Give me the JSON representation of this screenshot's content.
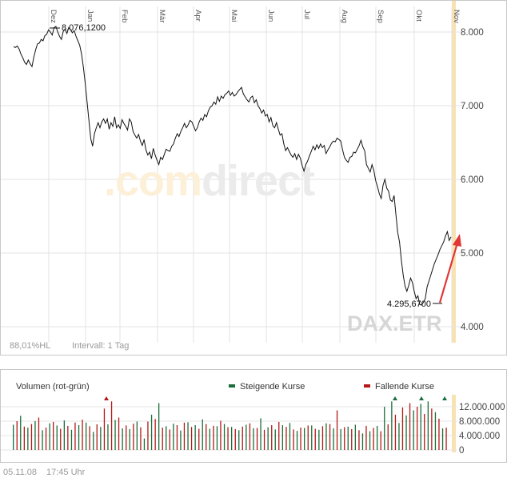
{
  "watermark": {
    "part1": ".com",
    "part2": "direct"
  },
  "instrument": "DAX.ETR",
  "main_footer": {
    "range_info": "88,01%HL",
    "interval": "Intervall: 1 Tag"
  },
  "volume_panel": {
    "title": "Volumen (rot-grün)",
    "legend_rising": "Steigende Kurse",
    "legend_falling": "Fallende Kurse",
    "rising_color": "#1a6e3a",
    "falling_color": "#b51818"
  },
  "timestamp": {
    "date": "05.11.08",
    "time": "17:45 Uhr"
  },
  "chart_data": [
    {
      "type": "line",
      "x_axis_labels": [
        "Dez",
        "Jan",
        "Feb",
        "Mär",
        "Apr",
        "Mai",
        "Jun",
        "Jul",
        "Aug",
        "Sep",
        "Okt",
        "Nov"
      ],
      "y_tick_labels": [
        "4.000",
        "5.000",
        "6.000",
        "7.000",
        "8.000"
      ],
      "ylim": [
        3800,
        8400
      ],
      "grid": true,
      "high_label": "8.076,1200",
      "low_label": "4.295,6700",
      "series": [
        {
          "values": [
            7800,
            7790,
            7810,
            7770,
            7700,
            7650,
            7590,
            7560,
            7620,
            7570,
            7530,
            7660,
            7760,
            7840,
            7850,
            7900,
            7880,
            7950,
            7970,
            8030,
            8000,
            7960,
            8060,
            8076,
            8000,
            7940,
            7900,
            8010,
            8040,
            7980,
            8060,
            8030,
            7990,
            8020,
            7940,
            7880,
            7820,
            7700,
            7520,
            7300,
            7050,
            6800,
            6550,
            6450,
            6620,
            6700,
            6770,
            6700,
            6780,
            6820,
            6760,
            6820,
            6680,
            6770,
            6720,
            6850,
            6700,
            6740,
            6690,
            6810,
            6760,
            6720,
            6670,
            6820,
            6780,
            6650,
            6600,
            6560,
            6610,
            6520,
            6460,
            6540,
            6400,
            6330,
            6370,
            6280,
            6420,
            6330,
            6260,
            6200,
            6300,
            6270,
            6340,
            6410,
            6390,
            6380,
            6450,
            6480,
            6560,
            6620,
            6580,
            6650,
            6700,
            6760,
            6700,
            6740,
            6800,
            6780,
            6720,
            6660,
            6700,
            6780,
            6830,
            6800,
            6880,
            6850,
            6930,
            6980,
            7000,
            7050,
            7020,
            7120,
            7060,
            7130,
            7100,
            7150,
            7170,
            7200,
            7140,
            7180,
            7130,
            7150,
            7190,
            7220,
            7250,
            7160,
            7120,
            7080,
            7050,
            7110,
            7130,
            7040,
            7080,
            7000,
            6960,
            6900,
            6940,
            6860,
            6880,
            6780,
            6840,
            6730,
            6700,
            6770,
            6680,
            6600,
            6620,
            6480,
            6390,
            6430,
            6380,
            6330,
            6300,
            6350,
            6270,
            6340,
            6290,
            6190,
            6110,
            6200,
            6250,
            6320,
            6380,
            6450,
            6400,
            6470,
            6420,
            6480,
            6430,
            6460,
            6350,
            6400,
            6440,
            6490,
            6520,
            6510,
            6560,
            6540,
            6520,
            6400,
            6300,
            6260,
            6230,
            6300,
            6310,
            6370,
            6360,
            6410,
            6460,
            6530,
            6440,
            6390,
            6200,
            6150,
            6100,
            6200,
            6120,
            5980,
            5900,
            5800,
            5740,
            5920,
            6000,
            5880,
            5840,
            5720,
            5700,
            5780,
            5520,
            5280,
            5150,
            4900,
            4700,
            4550,
            4480,
            4560,
            4660,
            4600,
            4480,
            4380,
            4420,
            4300,
            4295,
            4330,
            4380,
            4540,
            4620,
            4700,
            4780,
            4860,
            4920,
            4980,
            5050,
            5100,
            5150,
            5230,
            5290,
            5170,
            5220
          ]
        }
      ],
      "trend_arrow_color": "#e23535"
    },
    {
      "type": "bar",
      "title": "Volumen (rot-grün)",
      "y_tick_labels": [
        "0",
        "4.000.000",
        "8.000.000",
        "12.000.000"
      ],
      "ylim": [
        0,
        15000000
      ],
      "series": [
        {
          "name": "Steigende Kurse",
          "values": [
            7000000,
            9500000,
            6200000,
            8000000,
            5500000,
            7400000,
            6800000,
            8200000,
            5600000,
            6900000,
            7600000,
            5000000,
            6400000,
            7100000,
            8300000,
            6000000,
            5800000,
            7900000,
            3200000,
            9800000,
            13000000,
            6600000,
            7300000,
            5400000,
            7700000,
            6900000,
            8500000,
            5900000,
            6600000,
            7200000,
            6400000,
            5500000,
            7000000,
            6000000,
            8800000,
            6300000,
            5700000,
            6900000,
            7500000,
            5300000,
            6100000,
            6800000,
            5600000,
            7400000,
            6000000,
            5800000,
            6500000,
            7000000,
            4600000,
            5200000,
            6700000,
            12000000,
            13500000,
            7500000,
            9600000,
            11000000,
            12800000,
            14000000,
            10500000,
            6000000
          ]
        },
        {
          "name": "Fallende Kurse",
          "values": [
            8000000,
            6500000,
            7200000,
            9000000,
            6200000,
            7800000,
            5900000,
            6700000,
            7600000,
            8400000,
            6600000,
            7100000,
            11500000,
            13500000,
            9000000,
            6800000,
            7300000,
            6300000,
            7900000,
            8600000,
            6200000,
            5700000,
            6900000,
            7600000,
            6400000,
            5900000,
            7200000,
            6700000,
            8100000,
            6300000,
            5800000,
            6500000,
            7400000,
            6100000,
            5600000,
            6900000,
            7800000,
            6400000,
            5700000,
            6200000,
            6800000,
            5900000,
            6600000,
            7200000,
            11000000,
            6300000,
            5800000,
            5500000,
            6700000,
            6100000,
            5200000,
            7100000,
            9800000,
            11800000,
            13000000,
            12000000,
            10000000,
            11500000,
            8700000,
            6200000
          ]
        }
      ]
    }
  ]
}
